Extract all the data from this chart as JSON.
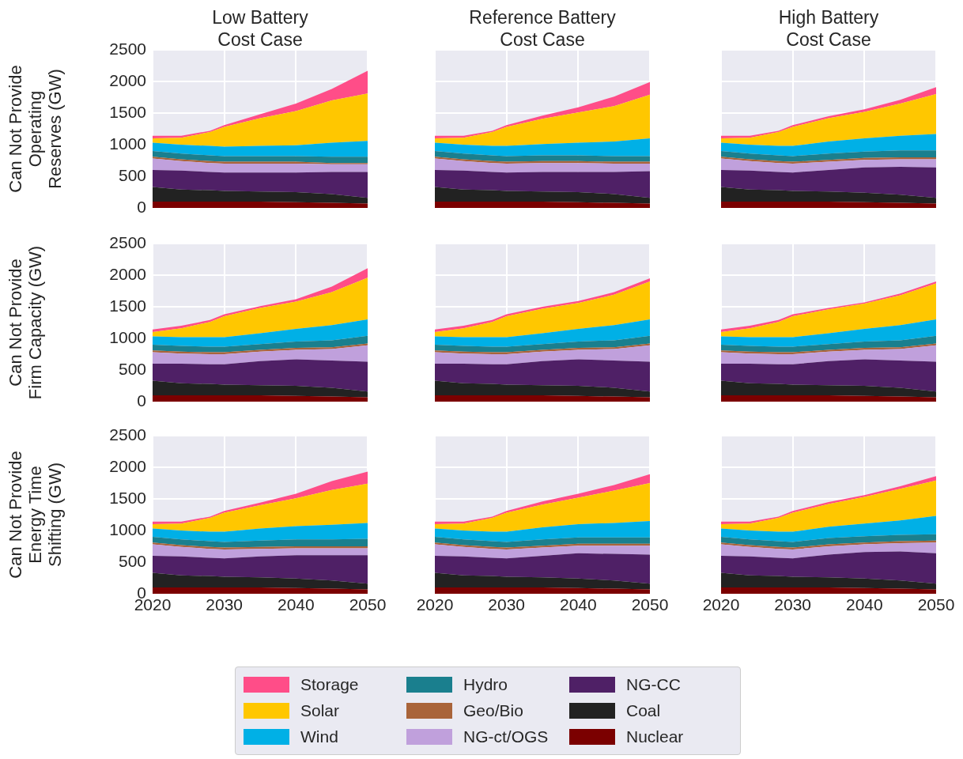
{
  "chart_data": [
    {
      "type": "area",
      "title": "Low Battery\nCost Case",
      "ylabel": "Can Not Provide\nOperating\nReserves (GW)",
      "stacked": true,
      "grid": true,
      "tick_labels": "y",
      "legend": "bottom",
      "x": [
        2020,
        2024,
        2028,
        2030,
        2035,
        2040,
        2045,
        2050
      ],
      "xlim": [
        2020,
        2050
      ],
      "xticks": [
        2020,
        2030,
        2040,
        2050
      ],
      "ylim": [
        0,
        2500
      ],
      "yticks": [
        0,
        500,
        1000,
        1500,
        2000,
        2500
      ],
      "series": [
        {
          "name": "Nuclear",
          "color": "#7b0000",
          "values": [
            100,
            100,
            100,
            100,
            100,
            90,
            80,
            70
          ]
        },
        {
          "name": "Coal",
          "color": "#222222",
          "values": [
            230,
            190,
            180,
            170,
            160,
            160,
            140,
            90
          ]
        },
        {
          "name": "NG-CC",
          "color": "#4f2066",
          "values": [
            270,
            300,
            290,
            290,
            300,
            310,
            350,
            410
          ]
        },
        {
          "name": "NG-ct/OGS",
          "color": "#c0a0dc",
          "values": [
            180,
            150,
            140,
            140,
            140,
            140,
            120,
            120
          ]
        },
        {
          "name": "Geo/Bio",
          "color": "#a9643a",
          "values": [
            30,
            30,
            30,
            30,
            30,
            30,
            20,
            20
          ]
        },
        {
          "name": "Hydro",
          "color": "#1a7f8e",
          "values": [
            90,
            90,
            90,
            90,
            90,
            90,
            100,
            100
          ]
        },
        {
          "name": "Wind",
          "color": "#00b0e6",
          "values": [
            130,
            140,
            150,
            150,
            160,
            170,
            220,
            250
          ]
        },
        {
          "name": "Solar",
          "color": "#ffc700",
          "values": [
            70,
            110,
            220,
            310,
            440,
            540,
            670,
            750
          ]
        },
        {
          "name": "Storage",
          "color": "#ff4d88",
          "values": [
            40,
            30,
            20,
            30,
            60,
            120,
            180,
            360
          ]
        }
      ]
    },
    {
      "type": "area",
      "title": "Reference Battery\nCost Case",
      "stacked": true,
      "grid": true,
      "tick_labels": false,
      "x": [
        2020,
        2024,
        2028,
        2030,
        2035,
        2040,
        2045,
        2050
      ],
      "xlim": [
        2020,
        2050
      ],
      "xticks": [
        2020,
        2030,
        2040,
        2050
      ],
      "ylim": [
        0,
        2500
      ],
      "yticks": [
        0,
        500,
        1000,
        1500,
        2000,
        2500
      ],
      "series": [
        {
          "color": "#7b0000",
          "values": [
            100,
            100,
            100,
            100,
            100,
            90,
            80,
            70
          ]
        },
        {
          "color": "#222222",
          "values": [
            230,
            190,
            180,
            170,
            160,
            160,
            140,
            90
          ]
        },
        {
          "color": "#4f2066",
          "values": [
            270,
            300,
            290,
            290,
            310,
            320,
            350,
            420
          ]
        },
        {
          "color": "#c0a0dc",
          "values": [
            180,
            150,
            140,
            140,
            140,
            140,
            130,
            120
          ]
        },
        {
          "color": "#a9643a",
          "values": [
            30,
            30,
            30,
            30,
            30,
            30,
            30,
            30
          ]
        },
        {
          "color": "#1a7f8e",
          "values": [
            90,
            90,
            90,
            90,
            90,
            90,
            90,
            90
          ]
        },
        {
          "color": "#00b0e6",
          "values": [
            130,
            140,
            150,
            160,
            180,
            200,
            230,
            280
          ]
        },
        {
          "color": "#ffc700",
          "values": [
            70,
            110,
            220,
            300,
            400,
            480,
            560,
            690
          ]
        },
        {
          "color": "#ff4d88",
          "values": [
            40,
            30,
            20,
            30,
            50,
            80,
            150,
            200
          ]
        }
      ]
    },
    {
      "type": "area",
      "title": "High Battery\nCost Case",
      "stacked": true,
      "grid": true,
      "tick_labels": false,
      "x": [
        2020,
        2024,
        2028,
        2030,
        2035,
        2040,
        2045,
        2050
      ],
      "xlim": [
        2020,
        2050
      ],
      "xticks": [
        2020,
        2030,
        2040,
        2050
      ],
      "ylim": [
        0,
        2500
      ],
      "yticks": [
        0,
        500,
        1000,
        1500,
        2000,
        2500
      ],
      "series": [
        {
          "color": "#7b0000",
          "values": [
            100,
            100,
            100,
            100,
            100,
            90,
            80,
            70
          ]
        },
        {
          "color": "#222222",
          "values": [
            230,
            190,
            180,
            170,
            160,
            150,
            130,
            90
          ]
        },
        {
          "color": "#4f2066",
          "values": [
            270,
            300,
            290,
            290,
            340,
            400,
            440,
            480
          ]
        },
        {
          "color": "#c0a0dc",
          "values": [
            180,
            150,
            140,
            140,
            130,
            120,
            120,
            130
          ]
        },
        {
          "color": "#a9643a",
          "values": [
            30,
            30,
            30,
            30,
            30,
            30,
            30,
            30
          ]
        },
        {
          "color": "#1a7f8e",
          "values": [
            90,
            90,
            90,
            90,
            100,
            100,
            110,
            110
          ]
        },
        {
          "color": "#00b0e6",
          "values": [
            130,
            140,
            150,
            160,
            190,
            210,
            230,
            260
          ]
        },
        {
          "color": "#ffc700",
          "values": [
            70,
            110,
            220,
            300,
            370,
            420,
            510,
            630
          ]
        },
        {
          "color": "#ff4d88",
          "values": [
            40,
            30,
            20,
            30,
            30,
            40,
            60,
            110
          ]
        }
      ]
    },
    {
      "type": "area",
      "ylabel": "Can Not Provide\nFirm Capacity (GW)",
      "stacked": true,
      "grid": true,
      "tick_labels": "y",
      "x": [
        2020,
        2024,
        2028,
        2030,
        2035,
        2040,
        2045,
        2050
      ],
      "xlim": [
        2020,
        2050
      ],
      "xticks": [
        2020,
        2030,
        2040,
        2050
      ],
      "ylim": [
        0,
        2500
      ],
      "yticks": [
        0,
        500,
        1000,
        1500,
        2000,
        2500
      ],
      "series": [
        {
          "color": "#7b0000",
          "values": [
            100,
            100,
            100,
            100,
            100,
            90,
            80,
            70
          ]
        },
        {
          "color": "#222222",
          "values": [
            230,
            190,
            180,
            170,
            160,
            160,
            140,
            90
          ]
        },
        {
          "color": "#4f2066",
          "values": [
            270,
            310,
            310,
            320,
            380,
            420,
            430,
            470
          ]
        },
        {
          "color": "#c0a0dc",
          "values": [
            180,
            160,
            160,
            160,
            150,
            150,
            180,
            260
          ]
        },
        {
          "color": "#a9643a",
          "values": [
            30,
            30,
            30,
            30,
            30,
            30,
            30,
            30
          ]
        },
        {
          "color": "#1a7f8e",
          "values": [
            90,
            90,
            90,
            90,
            90,
            100,
            110,
            120
          ]
        },
        {
          "color": "#00b0e6",
          "values": [
            130,
            140,
            150,
            150,
            170,
            200,
            240,
            260
          ]
        },
        {
          "color": "#ffc700",
          "values": [
            70,
            140,
            240,
            330,
            400,
            430,
            520,
            660
          ]
        },
        {
          "color": "#ff4d88",
          "values": [
            40,
            40,
            30,
            30,
            30,
            40,
            90,
            150
          ]
        }
      ]
    },
    {
      "type": "area",
      "stacked": true,
      "grid": true,
      "tick_labels": false,
      "x": [
        2020,
        2024,
        2028,
        2030,
        2035,
        2040,
        2045,
        2050
      ],
      "xlim": [
        2020,
        2050
      ],
      "xticks": [
        2020,
        2030,
        2040,
        2050
      ],
      "ylim": [
        0,
        2500
      ],
      "yticks": [
        0,
        500,
        1000,
        1500,
        2000,
        2500
      ],
      "series": [
        {
          "color": "#7b0000",
          "values": [
            100,
            100,
            100,
            100,
            100,
            90,
            80,
            70
          ]
        },
        {
          "color": "#222222",
          "values": [
            230,
            190,
            180,
            170,
            160,
            160,
            140,
            90
          ]
        },
        {
          "color": "#4f2066",
          "values": [
            270,
            310,
            310,
            320,
            380,
            420,
            430,
            470
          ]
        },
        {
          "color": "#c0a0dc",
          "values": [
            180,
            160,
            160,
            160,
            150,
            150,
            180,
            260
          ]
        },
        {
          "color": "#a9643a",
          "values": [
            30,
            30,
            30,
            30,
            30,
            30,
            30,
            30
          ]
        },
        {
          "color": "#1a7f8e",
          "values": [
            90,
            90,
            90,
            90,
            90,
            100,
            110,
            120
          ]
        },
        {
          "color": "#00b0e6",
          "values": [
            130,
            140,
            150,
            150,
            170,
            200,
            240,
            260
          ]
        },
        {
          "color": "#ffc700",
          "values": [
            70,
            140,
            240,
            330,
            390,
            410,
            480,
            600
          ]
        },
        {
          "color": "#ff4d88",
          "values": [
            40,
            40,
            30,
            30,
            30,
            30,
            40,
            50
          ]
        }
      ]
    },
    {
      "type": "area",
      "stacked": true,
      "grid": true,
      "tick_labels": false,
      "x": [
        2020,
        2024,
        2028,
        2030,
        2035,
        2040,
        2045,
        2050
      ],
      "xlim": [
        2020,
        2050
      ],
      "xticks": [
        2020,
        2030,
        2040,
        2050
      ],
      "ylim": [
        0,
        2500
      ],
      "yticks": [
        0,
        500,
        1000,
        1500,
        2000,
        2500
      ],
      "series": [
        {
          "color": "#7b0000",
          "values": [
            100,
            100,
            100,
            100,
            100,
            90,
            80,
            70
          ]
        },
        {
          "color": "#222222",
          "values": [
            230,
            190,
            180,
            170,
            160,
            160,
            140,
            90
          ]
        },
        {
          "color": "#4f2066",
          "values": [
            270,
            310,
            310,
            320,
            380,
            420,
            430,
            470
          ]
        },
        {
          "color": "#c0a0dc",
          "values": [
            180,
            160,
            160,
            160,
            150,
            150,
            180,
            260
          ]
        },
        {
          "color": "#a9643a",
          "values": [
            30,
            30,
            30,
            30,
            30,
            30,
            30,
            30
          ]
        },
        {
          "color": "#1a7f8e",
          "values": [
            90,
            90,
            90,
            90,
            90,
            100,
            110,
            120
          ]
        },
        {
          "color": "#00b0e6",
          "values": [
            130,
            140,
            150,
            150,
            170,
            200,
            240,
            260
          ]
        },
        {
          "color": "#ffc700",
          "values": [
            70,
            140,
            240,
            330,
            380,
            400,
            470,
            570
          ]
        },
        {
          "color": "#ff4d88",
          "values": [
            40,
            40,
            30,
            30,
            20,
            20,
            30,
            30
          ]
        }
      ]
    },
    {
      "type": "area",
      "ylabel": "Can Not Provide\nEnergy Time\nShifting (GW)",
      "stacked": true,
      "grid": true,
      "x": [
        2020,
        2024,
        2028,
        2030,
        2035,
        2040,
        2045,
        2050
      ],
      "xlim": [
        2020,
        2050
      ],
      "xticks": [
        2020,
        2030,
        2040,
        2050
      ],
      "ylim": [
        0,
        2500
      ],
      "yticks": [
        0,
        500,
        1000,
        1500,
        2000,
        2500
      ],
      "series": [
        {
          "color": "#7b0000",
          "values": [
            100,
            100,
            100,
            100,
            100,
            90,
            80,
            70
          ]
        },
        {
          "color": "#222222",
          "values": [
            230,
            190,
            180,
            170,
            160,
            150,
            130,
            90
          ]
        },
        {
          "color": "#4f2066",
          "values": [
            270,
            300,
            290,
            290,
            330,
            370,
            400,
            450
          ]
        },
        {
          "color": "#c0a0dc",
          "values": [
            180,
            150,
            140,
            140,
            120,
            110,
            110,
            110
          ]
        },
        {
          "color": "#a9643a",
          "values": [
            30,
            30,
            30,
            30,
            30,
            30,
            30,
            30
          ]
        },
        {
          "color": "#1a7f8e",
          "values": [
            90,
            90,
            90,
            90,
            100,
            110,
            110,
            120
          ]
        },
        {
          "color": "#00b0e6",
          "values": [
            130,
            140,
            150,
            160,
            190,
            210,
            230,
            250
          ]
        },
        {
          "color": "#ffc700",
          "values": [
            70,
            110,
            220,
            300,
            370,
            440,
            550,
            620
          ]
        },
        {
          "color": "#ff4d88",
          "values": [
            40,
            30,
            20,
            30,
            40,
            70,
            140,
            190
          ]
        }
      ]
    },
    {
      "type": "area",
      "stacked": true,
      "grid": true,
      "tick_labels": "x",
      "x": [
        2020,
        2024,
        2028,
        2030,
        2035,
        2040,
        2045,
        2050
      ],
      "xlim": [
        2020,
        2050
      ],
      "xticks": [
        2020,
        2030,
        2040,
        2050
      ],
      "ylim": [
        0,
        2500
      ],
      "yticks": [
        0,
        500,
        1000,
        1500,
        2000,
        2500
      ],
      "series": [
        {
          "color": "#7b0000",
          "values": [
            100,
            100,
            100,
            100,
            100,
            90,
            80,
            70
          ]
        },
        {
          "color": "#222222",
          "values": [
            230,
            190,
            180,
            170,
            160,
            150,
            130,
            90
          ]
        },
        {
          "color": "#4f2066",
          "values": [
            270,
            300,
            290,
            290,
            340,
            400,
            420,
            460
          ]
        },
        {
          "color": "#c0a0dc",
          "values": [
            180,
            150,
            140,
            140,
            130,
            120,
            130,
            140
          ]
        },
        {
          "color": "#a9643a",
          "values": [
            30,
            30,
            30,
            30,
            30,
            30,
            30,
            30
          ]
        },
        {
          "color": "#1a7f8e",
          "values": [
            90,
            90,
            90,
            90,
            100,
            100,
            100,
            100
          ]
        },
        {
          "color": "#00b0e6",
          "values": [
            130,
            140,
            150,
            160,
            190,
            210,
            230,
            260
          ]
        },
        {
          "color": "#ffc700",
          "values": [
            70,
            110,
            220,
            300,
            360,
            420,
            510,
            600
          ]
        },
        {
          "color": "#ff4d88",
          "values": [
            40,
            30,
            20,
            30,
            50,
            60,
            90,
            140
          ]
        }
      ]
    },
    {
      "type": "area",
      "stacked": true,
      "grid": true,
      "tick_labels": "x",
      "x": [
        2020,
        2024,
        2028,
        2030,
        2035,
        2040,
        2045,
        2050
      ],
      "xlim": [
        2020,
        2050
      ],
      "xticks": [
        2020,
        2030,
        2040,
        2050
      ],
      "ylim": [
        0,
        2500
      ],
      "yticks": [
        0,
        500,
        1000,
        1500,
        2000,
        2500
      ],
      "series": [
        {
          "color": "#7b0000",
          "values": [
            100,
            100,
            100,
            100,
            100,
            90,
            80,
            70
          ]
        },
        {
          "color": "#222222",
          "values": [
            230,
            190,
            180,
            170,
            160,
            150,
            130,
            90
          ]
        },
        {
          "color": "#4f2066",
          "values": [
            270,
            300,
            290,
            290,
            360,
            420,
            460,
            480
          ]
        },
        {
          "color": "#c0a0dc",
          "values": [
            180,
            150,
            140,
            140,
            130,
            120,
            130,
            170
          ]
        },
        {
          "color": "#a9643a",
          "values": [
            30,
            30,
            30,
            30,
            30,
            30,
            30,
            30
          ]
        },
        {
          "color": "#1a7f8e",
          "values": [
            90,
            90,
            90,
            90,
            100,
            100,
            100,
            100
          ]
        },
        {
          "color": "#00b0e6",
          "values": [
            130,
            140,
            150,
            160,
            180,
            200,
            230,
            290
          ]
        },
        {
          "color": "#ffc700",
          "values": [
            70,
            110,
            220,
            300,
            360,
            420,
            500,
            560
          ]
        },
        {
          "color": "#ff4d88",
          "values": [
            40,
            30,
            20,
            30,
            30,
            30,
            40,
            70
          ]
        }
      ]
    }
  ]
}
